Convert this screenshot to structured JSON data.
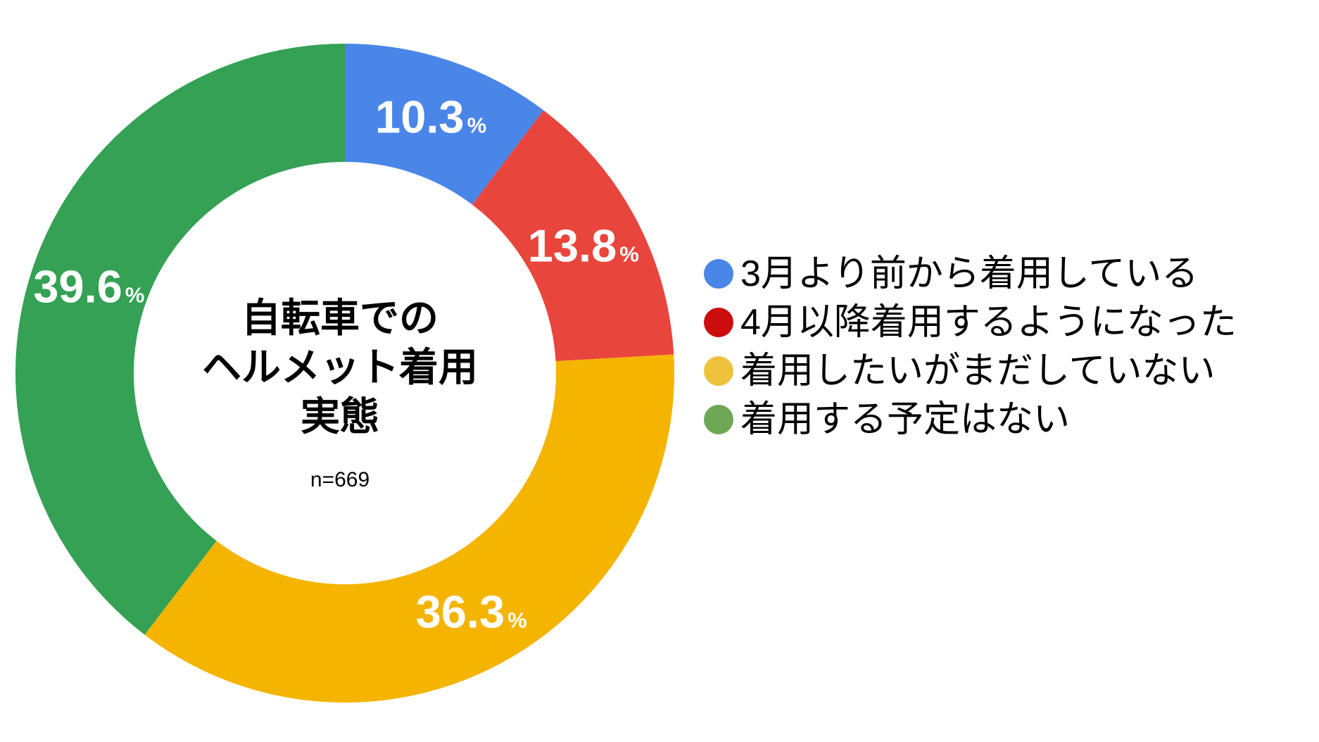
{
  "chart_data": {
    "type": "pie",
    "subtype": "donut",
    "title": "自転車での\nヘルメット着用\n実態",
    "center_note": "n=669",
    "value_suffix": "%",
    "start_angle_deg": 0,
    "direction": "clockwise",
    "legend_position": "right",
    "background_color": "#ffffff",
    "value_label_color": "#ffffff",
    "series": [
      {
        "label": "3月より前から着用している",
        "value": 10.3,
        "color": "#4A86E8",
        "legend_color": "#4A86E8"
      },
      {
        "label": "4月以降着用するようになった",
        "value": 13.8,
        "color": "#E8453C",
        "legend_color": "#CC0D0D"
      },
      {
        "label": "着用したいがまだしていない",
        "value": 36.3,
        "color": "#F5B400",
        "legend_color": "#EEC23C"
      },
      {
        "label": "着用する予定はない",
        "value": 39.6,
        "color": "#34A154",
        "legend_color": "#6FA855"
      }
    ]
  }
}
